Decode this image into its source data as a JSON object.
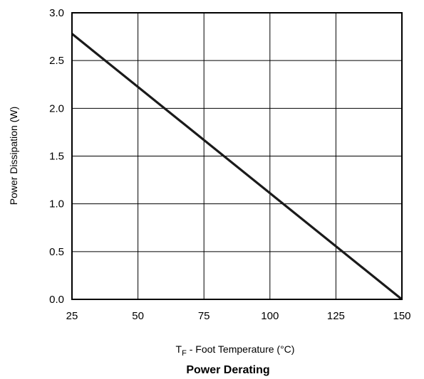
{
  "chart_data": {
    "type": "line",
    "title": "Power Derating",
    "xlabel_main": "T",
    "xlabel_sub": "F",
    "xlabel_rest": " - Foot Temperature (°C)",
    "ylabel": "Power Dissipation (W)",
    "xlim": [
      25,
      150
    ],
    "ylim": [
      0,
      3.0
    ],
    "grid": true,
    "x_ticks": [
      {
        "value": 25,
        "label": "25"
      },
      {
        "value": 50,
        "label": "50"
      },
      {
        "value": 75,
        "label": "75"
      },
      {
        "value": 100,
        "label": "100"
      },
      {
        "value": 125,
        "label": "125"
      },
      {
        "value": 150,
        "label": "150"
      }
    ],
    "y_ticks": [
      {
        "value": 0,
        "label": "0.0"
      },
      {
        "value": 0.5,
        "label": "0.5"
      },
      {
        "value": 1.0,
        "label": "1.0"
      },
      {
        "value": 1.5,
        "label": "1.5"
      },
      {
        "value": 2.0,
        "label": "2.0"
      },
      {
        "value": 2.5,
        "label": "2.5"
      },
      {
        "value": 3.0,
        "label": "3.0"
      }
    ],
    "series": [
      {
        "x": [
          25,
          150
        ],
        "y": [
          2.78,
          0
        ],
        "color": "#1a1a1a"
      }
    ]
  }
}
